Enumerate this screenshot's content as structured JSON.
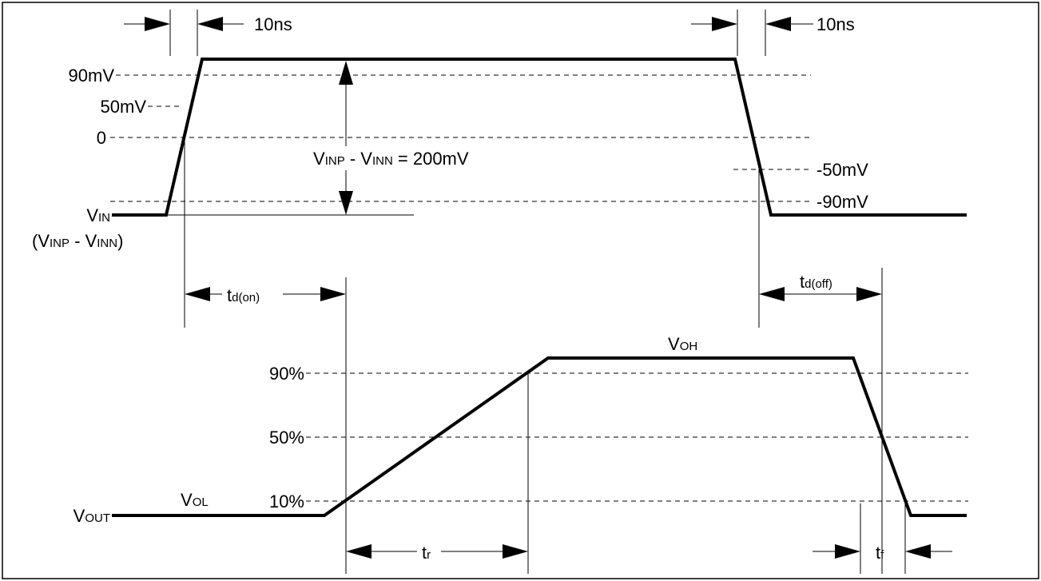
{
  "input": {
    "rise_time": "10ns",
    "fall_time": "10ns",
    "level_90mv": "90mV",
    "level_50mv": "50mV",
    "level_zero": "0",
    "level_neg50mv": "-50mV",
    "level_neg90mv": "-90mV",
    "vin_main": "V",
    "vin_sub": "IN",
    "vin_note": {
      "p1": "(V",
      "s1": "INP",
      "p2": " - V",
      "s2": "INN",
      "p3": ")"
    },
    "diff_label": {
      "p1": "V",
      "s1": "INP",
      "p2": " - V",
      "s2": "INN",
      "p3": " = 200mV"
    }
  },
  "timing": {
    "td_on": {
      "main": "t",
      "sub": "d(on)"
    },
    "td_off": {
      "main": "t",
      "sub": "d(off)"
    },
    "tr": {
      "main": "t",
      "sub": "r"
    },
    "tf": {
      "main": "t",
      "sub": "f"
    }
  },
  "output": {
    "level_90": "90%",
    "level_50": "50%",
    "level_10": "10%",
    "vout": {
      "main": "V",
      "sub": "OUT"
    },
    "voh": {
      "main": "V",
      "sub": "OH"
    },
    "vol": {
      "main": "V",
      "sub": "OL"
    }
  }
}
